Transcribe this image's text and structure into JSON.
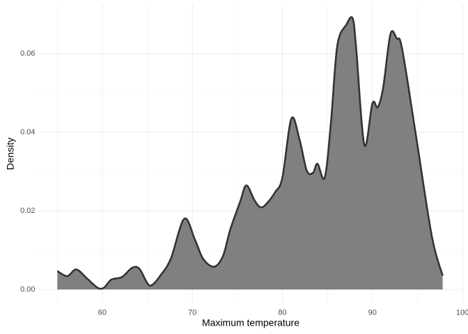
{
  "chart_data": {
    "type": "density",
    "x_label": "Maximum temperature",
    "y_label": "Density",
    "x": [
      55,
      56.1,
      57.1,
      58.3,
      59.5,
      60.2,
      61.0,
      62.2,
      63.3,
      64.1,
      65.0,
      65.5,
      66.4,
      67.6,
      69.1,
      70.3,
      71.2,
      72.4,
      73.4,
      74.2,
      75.3,
      76.0,
      76.9,
      77.6,
      78.3,
      79.2,
      80.0,
      81.0,
      81.9,
      82.7,
      83.4,
      83.9,
      84.7,
      85.4,
      86.1,
      87.1,
      87.8,
      88.2,
      89.1,
      90.0,
      90.6,
      91.2,
      92.0,
      92.7,
      93.3,
      94.9,
      96.6,
      97.8
    ],
    "values": [
      0.0047,
      0.0034,
      0.0051,
      0.0028,
      0.0004,
      0.0005,
      0.0025,
      0.0032,
      0.0055,
      0.0053,
      0.0016,
      0.0011,
      0.0034,
      0.0078,
      0.018,
      0.0126,
      0.0078,
      0.0058,
      0.0085,
      0.0152,
      0.0223,
      0.0265,
      0.0227,
      0.0209,
      0.022,
      0.0248,
      0.0285,
      0.0435,
      0.0382,
      0.0303,
      0.0297,
      0.032,
      0.0285,
      0.0427,
      0.0621,
      0.0674,
      0.069,
      0.0612,
      0.0368,
      0.0474,
      0.0464,
      0.0515,
      0.065,
      0.0639,
      0.0612,
      0.0382,
      0.0135,
      0.0035
    ],
    "fill": "#808080",
    "color": "#333333",
    "xlim": [
      52.85,
      100.15
    ],
    "xticks": [
      60,
      70,
      80,
      90,
      100
    ],
    "x_minor_ticks": [
      55,
      65,
      75,
      85,
      95
    ],
    "ylim": [
      -0.00345,
      0.07245
    ],
    "yticks": [
      {
        "value": 0,
        "label": "0.00"
      },
      {
        "value": 0.02,
        "label": "0.02"
      },
      {
        "value": 0.04,
        "label": "0.04"
      },
      {
        "value": 0.06,
        "label": "0.06"
      }
    ],
    "y_minor_ticks": [
      0.01,
      0.03,
      0.05
    ],
    "grid": true
  }
}
